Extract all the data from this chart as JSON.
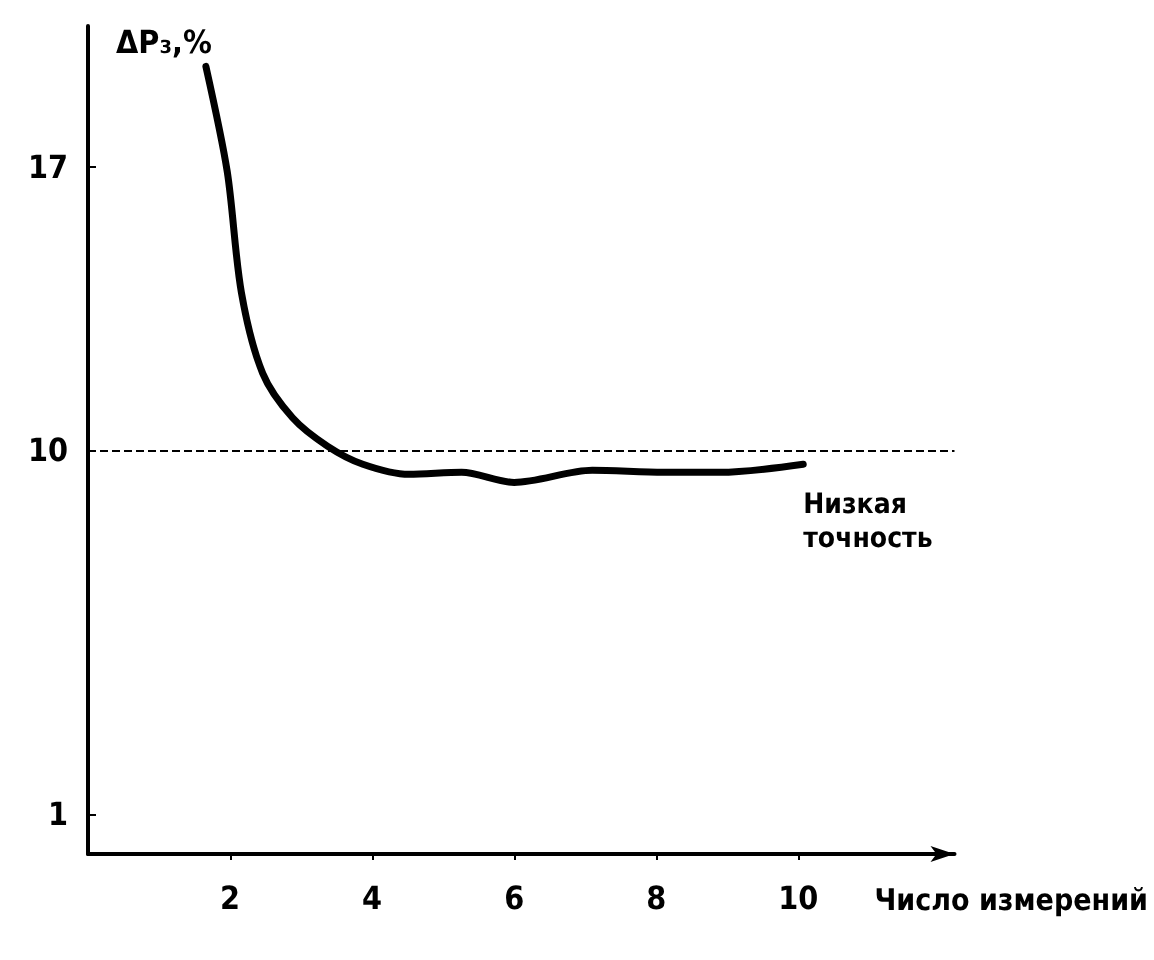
{
  "chart_data": {
    "type": "line",
    "ylabel": "ΔP₃,%",
    "xlabel": "Число измерений",
    "series": [
      {
        "name": "Низкая точность",
        "color": "#000000",
        "x": [
          1.66,
          1.96,
          2.16,
          2.46,
          2.88,
          3.37,
          3.87,
          4.52,
          5.26,
          6.0,
          7.1,
          8.1,
          8.9,
          10.07
        ],
        "values": [
          19.5,
          16.9,
          13.9,
          11.9,
          10.8,
          10.1,
          9.65,
          9.4,
          9.45,
          9.2,
          9.5,
          9.45,
          9.45,
          9.65
        ]
      }
    ],
    "xlim": [
      0,
      12.2
    ],
    "xticks": [
      2,
      4,
      6,
      8,
      10
    ],
    "ylim": [
      0,
      20.5
    ],
    "yticks": [
      1,
      10,
      17
    ],
    "ref_lines": [
      {
        "axis": "y",
        "value": 10,
        "line_style": "dashed",
        "color": "#000000"
      }
    ],
    "grid": false,
    "legend": false,
    "marker": "none",
    "line_style": "solid"
  }
}
